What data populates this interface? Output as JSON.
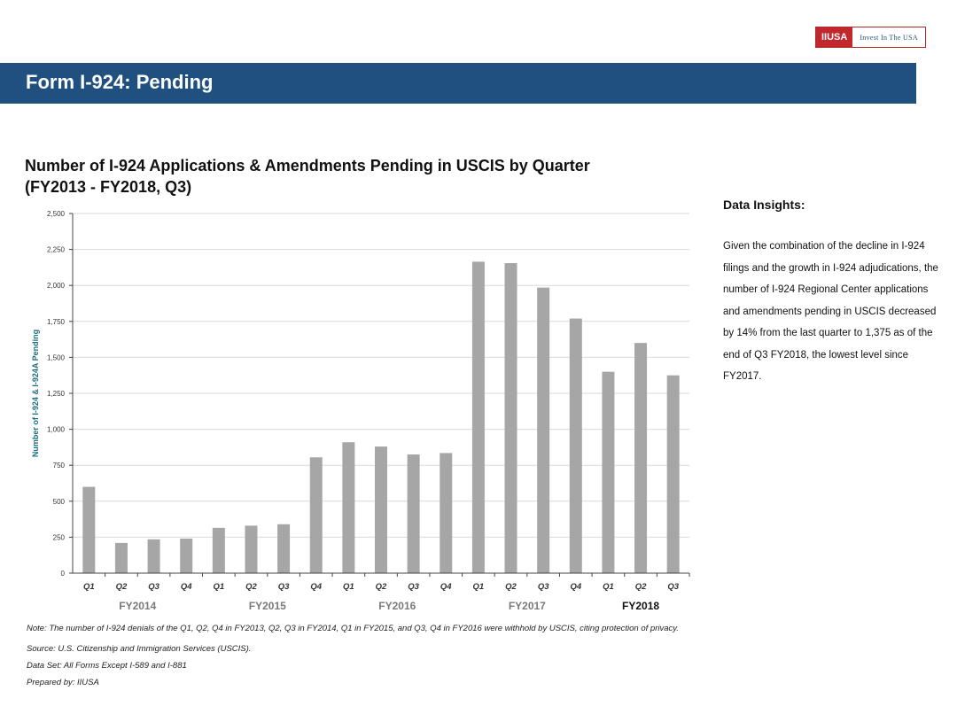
{
  "logo": {
    "left_text": "IIUSA",
    "right_text": "Invest In The USA"
  },
  "banner": {
    "title": "Form I-924: Pending"
  },
  "chart_title": {
    "line1": "Number of I-924 Applications & Amendments Pending in USCIS by Quarter",
    "line2": "(FY2013 - FY2018, Q3)"
  },
  "insights": {
    "title": "Data Insights:",
    "body": "Given the combination of the decline in I-924 filings and the growth in I-924 adjudications, the number of I-924 Regional Center applications and amendments pending in USCIS decreased by 14% from the last quarter to 1,375 as of the end of Q3 FY2018, the lowest level since FY2017."
  },
  "colors": {
    "banner": "#1f5080",
    "bar": "#a6a6a6",
    "ylabel": "#1a6e82"
  },
  "chart_data": {
    "type": "bar",
    "ylabel": "Number of I-924 & I-924A Pending",
    "ylim": [
      0,
      2500
    ],
    "yticks": [
      0,
      250,
      500,
      750,
      1000,
      1250,
      1500,
      1750,
      2000,
      2250,
      2500
    ],
    "ytick_labels": [
      "0",
      "250",
      "500",
      "750",
      "1,000",
      "1,250",
      "1,500",
      "1,750",
      "2,000",
      "2,250",
      "2,500"
    ],
    "grid": true,
    "categories": [
      "Q1",
      "Q2",
      "Q3",
      "Q4",
      "Q1",
      "Q2",
      "Q3",
      "Q4",
      "Q1",
      "Q2",
      "Q3",
      "Q4",
      "Q1",
      "Q2",
      "Q3",
      "Q4",
      "Q1",
      "Q2",
      "Q3"
    ],
    "values": [
      600,
      210,
      235,
      240,
      315,
      330,
      340,
      805,
      910,
      880,
      825,
      835,
      2165,
      2155,
      1985,
      1770,
      1400,
      1600,
      1375
    ],
    "groups": [
      {
        "label": "FY2014",
        "start": 0,
        "end": 3,
        "bold": false
      },
      {
        "label": "FY2015",
        "start": 4,
        "end": 7,
        "bold": false
      },
      {
        "label": "FY2016",
        "start": 8,
        "end": 11,
        "bold": false
      },
      {
        "label": "FY2017",
        "start": 12,
        "end": 15,
        "bold": false
      },
      {
        "label": "FY2018",
        "start": 16,
        "end": 18,
        "bold": true
      }
    ]
  },
  "footnotes": {
    "note": "Note: The number of I-924 denials of the Q1, Q2, Q4 in FY2013, Q2, Q3 in FY2014, Q1 in FY2015, and Q3, Q4 in FY2016 were withhold by USCIS, citing protection of privacy.",
    "source": "Source: U.S. Citizenship and Immigration Services (USCIS).",
    "dataset": "Data Set: All Forms Except I-589 and I-881",
    "prepared": "Prepared by: IIUSA"
  }
}
